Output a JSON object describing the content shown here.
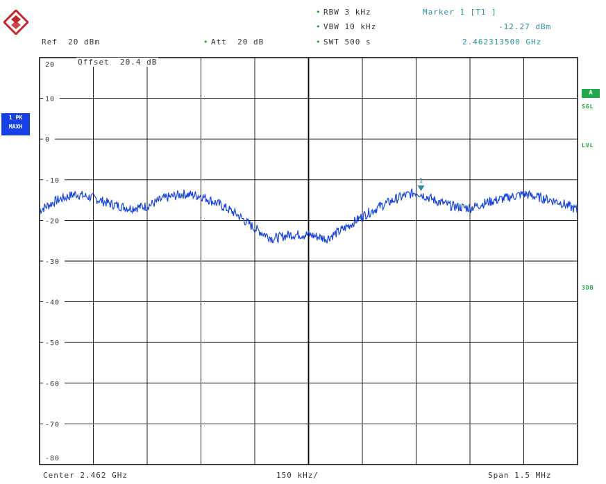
{
  "header": {
    "rbw": "RBW 3 kHz",
    "vbw": "VBW 10 kHz",
    "swt": "SWT 500 s",
    "ref": "Ref  20 dBm",
    "att": "Att  20 dB",
    "marker_title": "Marker 1 [T1 ]",
    "marker_level": "-12.27 dBm",
    "marker_freq": "2.462313500 GHz",
    "offset": "Offset  20.4 dB"
  },
  "side": {
    "left_line1": "1 PK",
    "left_line2": "MAXH",
    "a_badge": "A",
    "sgl": "SGL",
    "lvl": "LVL",
    "tdf": "3DB"
  },
  "footer": {
    "center": "Center 2.462 GHz",
    "div": "150 kHz/",
    "span": "Span 1.5 MHz"
  },
  "colors": {
    "trace": "#1440e6",
    "grid": "#000000",
    "accent": "#1a9a3a",
    "marker": "#2a8f98"
  },
  "chart_data": {
    "type": "line",
    "title": "",
    "xlabel": "",
    "ylabel": "",
    "ylim": [
      -80,
      20
    ],
    "y_tick_labels": [
      "20",
      "10",
      "0",
      "-10",
      "-20",
      "-30",
      "-40",
      "-50",
      "-60",
      "-70",
      "-80"
    ],
    "x_units": "GHz",
    "xlim": [
      2.46125,
      2.46275
    ],
    "grid": true,
    "marker": {
      "label": "1",
      "x": 2.4623135,
      "y": -12.27
    },
    "series": [
      {
        "x": [
          2.46125,
          2.4613,
          2.46135,
          2.4614,
          2.46145,
          2.4615,
          2.46155,
          2.4616,
          2.46165,
          2.4617,
          2.46175,
          2.4618,
          2.46185,
          2.4619,
          2.46195,
          2.462,
          2.46205,
          2.4621,
          2.46215,
          2.4622,
          2.46225,
          2.4623,
          2.46235,
          2.4624,
          2.46245,
          2.4625,
          2.46255,
          2.4626,
          2.46265,
          2.4627,
          2.46275
        ],
        "values": [
          -17.5,
          -15.0,
          -13.5,
          -14.5,
          -16.0,
          -17.0,
          -16.5,
          -14.5,
          -13.5,
          -14.0,
          -16.0,
          -18.5,
          -22.0,
          -24.5,
          -23.5,
          -23.5,
          -24.5,
          -22.0,
          -19.0,
          -16.5,
          -14.5,
          -13.0,
          -15.0,
          -16.5,
          -17.0,
          -15.5,
          -14.5,
          -13.5,
          -14.5,
          -15.5,
          -17.5
        ]
      }
    ]
  }
}
